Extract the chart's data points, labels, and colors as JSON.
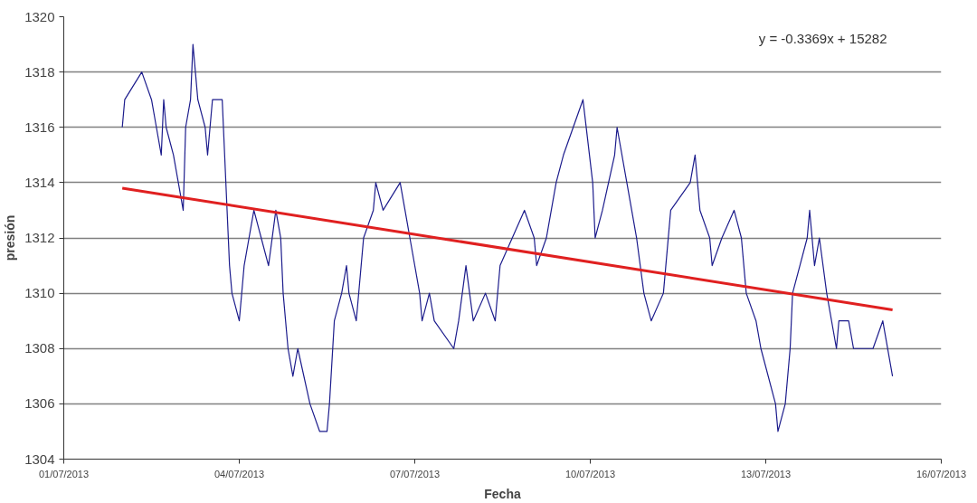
{
  "chart_data": {
    "type": "line",
    "xlabel": "Fecha",
    "ylabel": "presión",
    "annotations": [
      "y = -0.3369x + 15282"
    ],
    "xlim": [
      "2013-07-01",
      "2013-07-16"
    ],
    "xticks": [
      {
        "value": "2013-07-01",
        "label": "01/07/2013"
      },
      {
        "value": "2013-07-04",
        "label": "04/07/2013"
      },
      {
        "value": "2013-07-07",
        "label": "07/07/2013"
      },
      {
        "value": "2013-07-10",
        "label": "10/07/2013"
      },
      {
        "value": "2013-07-13",
        "label": "13/07/2013"
      },
      {
        "value": "2013-07-16",
        "label": "16/07/2013"
      }
    ],
    "ylim": [
      1304,
      1320
    ],
    "yticks": [
      1304,
      1306,
      1308,
      1310,
      1312,
      1314,
      1316,
      1318,
      1320
    ],
    "grid": "y",
    "series": [
      {
        "color": "#1c1c8c",
        "x": [
          "2013-07-02T00:00",
          "2013-07-02T01:00",
          "2013-07-02T08:00",
          "2013-07-02T12:00",
          "2013-07-02T14:00",
          "2013-07-02T16:00",
          "2013-07-02T17:00",
          "2013-07-02T18:00",
          "2013-07-02T21:00",
          "2013-07-02T23:00",
          "2013-07-03T01:00",
          "2013-07-03T02:00",
          "2013-07-03T04:00",
          "2013-07-03T05:00",
          "2013-07-03T06:00",
          "2013-07-03T07:00",
          "2013-07-03T10:00",
          "2013-07-03T11:00",
          "2013-07-03T13:00",
          "2013-07-03T17:00",
          "2013-07-03T19:00",
          "2013-07-03T20:00",
          "2013-07-03T21:00",
          "2013-07-04T00:00",
          "2013-07-04T02:00",
          "2013-07-04T04:00",
          "2013-07-04T06:00",
          "2013-07-04T09:00",
          "2013-07-04T12:00",
          "2013-07-04T15:00",
          "2013-07-04T17:00",
          "2013-07-04T18:00",
          "2013-07-04T20:00",
          "2013-07-04T22:00",
          "2013-07-05T00:00",
          "2013-07-05T05:00",
          "2013-07-05T09:00",
          "2013-07-05T12:00",
          "2013-07-05T13:00",
          "2013-07-05T15:00",
          "2013-07-05T18:00",
          "2013-07-05T20:00",
          "2013-07-05T21:00",
          "2013-07-06T00:00",
          "2013-07-06T03:00",
          "2013-07-06T07:00",
          "2013-07-06T08:00",
          "2013-07-06T11:00",
          "2013-07-06T18:00",
          "2013-07-06T20:00",
          "2013-07-06T22:00",
          "2013-07-07T02:00",
          "2013-07-07T03:00",
          "2013-07-07T06:00",
          "2013-07-07T08:00",
          "2013-07-07T16:00",
          "2013-07-07T18:00",
          "2013-07-07T21:00",
          "2013-07-08T00:00",
          "2013-07-08T05:00",
          "2013-07-08T09:00",
          "2013-07-08T11:00",
          "2013-07-08T16:00",
          "2013-07-08T21:00",
          "2013-07-09T01:00",
          "2013-07-09T02:00",
          "2013-07-09T06:00",
          "2013-07-09T10:00",
          "2013-07-09T13:00",
          "2013-07-09T17:00",
          "2013-07-09T21:00",
          "2013-07-10T01:00",
          "2013-07-10T02:00",
          "2013-07-10T05:00",
          "2013-07-10T10:00",
          "2013-07-10T11:00",
          "2013-07-10T15:00",
          "2013-07-10T19:00",
          "2013-07-10T22:00",
          "2013-07-11T01:00",
          "2013-07-11T06:00",
          "2013-07-11T09:00",
          "2013-07-11T17:00",
          "2013-07-11T19:00",
          "2013-07-11T21:00",
          "2013-07-12T01:00",
          "2013-07-12T02:00",
          "2013-07-12T06:00",
          "2013-07-12T11:00",
          "2013-07-12T14:00",
          "2013-07-12T16:00",
          "2013-07-12T20:00",
          "2013-07-12T22:00",
          "2013-07-13T04:00",
          "2013-07-13T05:00",
          "2013-07-13T08:00",
          "2013-07-13T10:00",
          "2013-07-13T11:00",
          "2013-07-13T14:00",
          "2013-07-13T17:00",
          "2013-07-13T18:00",
          "2013-07-13T20:00",
          "2013-07-13T22:00",
          "2013-07-14T01:00",
          "2013-07-14T05:00",
          "2013-07-14T06:00",
          "2013-07-14T10:00",
          "2013-07-14T12:00",
          "2013-07-14T20:00",
          "2013-07-15T00:00",
          "2013-07-15T04:00"
        ],
        "values": [
          1316,
          1317,
          1318,
          1317,
          1316,
          1315,
          1317,
          1316,
          1315,
          1314,
          1313,
          1316,
          1317,
          1319,
          1318,
          1317,
          1316,
          1315,
          1317,
          1317,
          1313,
          1311,
          1310,
          1309,
          1311,
          1312,
          1313,
          1312,
          1311,
          1313,
          1312,
          1310,
          1308,
          1307,
          1308,
          1306,
          1305,
          1305,
          1306,
          1309,
          1310,
          1311,
          1310,
          1309,
          1312,
          1313,
          1314,
          1313,
          1314,
          1313,
          1312,
          1310,
          1309,
          1310,
          1309,
          1308,
          1309,
          1311,
          1309,
          1310,
          1309,
          1311,
          1312,
          1313,
          1312,
          1311,
          1312,
          1314,
          1315,
          1316,
          1317,
          1314,
          1312,
          1313,
          1315,
          1316,
          1314,
          1312,
          1310,
          1309,
          1310,
          1313,
          1314,
          1315,
          1313,
          1312,
          1311,
          1312,
          1313,
          1312,
          1310,
          1309,
          1308,
          1306,
          1305,
          1306,
          1308,
          1310,
          1311,
          1312,
          1313,
          1311,
          1312,
          1310,
          1308,
          1309,
          1309,
          1308,
          1308,
          1309,
          1307
        ]
      },
      {
        "type": "line",
        "color": "#e02020",
        "x": [
          "2013-07-02T00:00",
          "2013-07-15T04:00"
        ],
        "values": [
          1313.8,
          1309.4
        ]
      }
    ]
  }
}
